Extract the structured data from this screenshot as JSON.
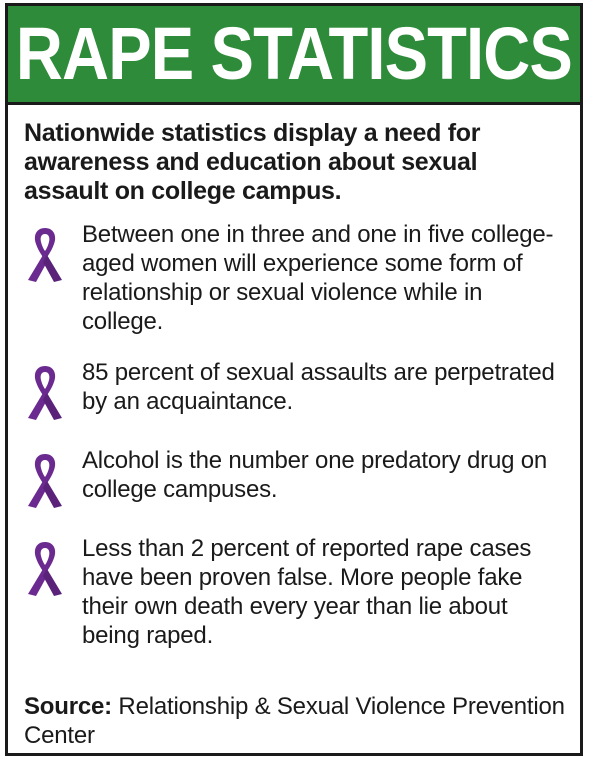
{
  "header": {
    "title": "RAPE STATISTICS"
  },
  "intro": "Nationwide statistics display a need for awareness and education about sexual assault on college campus.",
  "facts": [
    {
      "icon": "awareness-ribbon-icon",
      "text": "Between one in three and one in five college-aged women will experience some form of relationship or sexual violence while in college."
    },
    {
      "icon": "awareness-ribbon-icon",
      "text": "85 percent of sexual assaults are perpetrated by an acquaintance."
    },
    {
      "icon": "awareness-ribbon-icon",
      "text": "Alcohol is the number one predatory drug on college campuses."
    },
    {
      "icon": "awareness-ribbon-icon",
      "text": "Less than 2 percent of reported rape cases have been proven false. More people fake their own death every year than lie about being raped."
    }
  ],
  "source": {
    "label": "Source:",
    "text": " Relationship & Sexual Violence Prevention Center"
  },
  "colors": {
    "header_green": "#2e8b3a",
    "ribbon_purple": "#6b2a8f",
    "border": "#1a1a1a"
  }
}
